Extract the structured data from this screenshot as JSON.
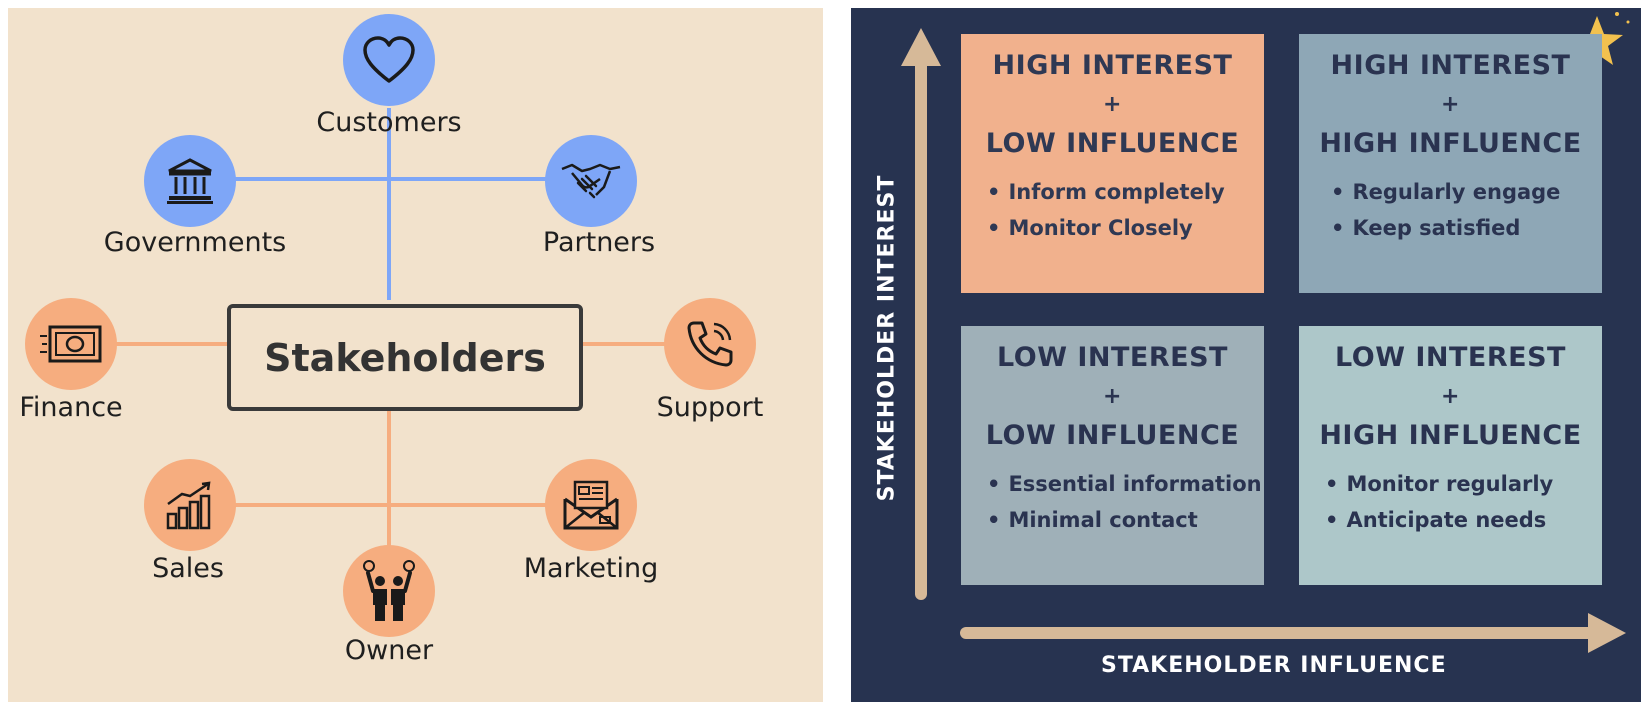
{
  "stakeholder_map": {
    "center": "Stakeholders",
    "nodes": [
      {
        "id": "customers",
        "label": "Customers",
        "icon": "heart-icon",
        "color": "#7ea6f7"
      },
      {
        "id": "governments",
        "label": "Governments",
        "icon": "bank-icon",
        "color": "#7ea6f7"
      },
      {
        "id": "partners",
        "label": "Partners",
        "icon": "handshake-icon",
        "color": "#7ea6f7"
      },
      {
        "id": "finance",
        "label": "Finance",
        "icon": "banknote-icon",
        "color": "#f6ad7f"
      },
      {
        "id": "support",
        "label": "Support",
        "icon": "phone-icon",
        "color": "#f6ad7f"
      },
      {
        "id": "sales",
        "label": "Sales",
        "icon": "bar-chart-icon",
        "color": "#f6ad7f"
      },
      {
        "id": "marketing",
        "label": "Marketing",
        "icon": "envelope-icon",
        "color": "#f6ad7f"
      },
      {
        "id": "owner",
        "label": "Owner",
        "icon": "people-icon",
        "color": "#f6ad7f"
      }
    ]
  },
  "matrix": {
    "y_axis_label": "STAKEHOLDER INTEREST",
    "x_axis_label": "STAKEHOLDER INFLUENCE",
    "quadrants": [
      {
        "line1": "HIGH INTEREST",
        "plus": "+",
        "line2": "LOW INFLUENCE",
        "bullets": [
          "Inform completely",
          "Monitor Closely"
        ],
        "color": "#f1b18d"
      },
      {
        "line1": "HIGH INTEREST",
        "plus": "+",
        "line2": "HIGH INFLUENCE",
        "bullets": [
          "Regularly engage",
          "Keep satisfied"
        ],
        "color": "#8ea7b6"
      },
      {
        "line1": "LOW INTEREST",
        "plus": "+",
        "line2": "LOW INFLUENCE",
        "bullets": [
          "Essential information",
          "Minimal contact"
        ],
        "color": "#9fb0b8"
      },
      {
        "line1": "LOW INTEREST",
        "plus": "+",
        "line2": "HIGH INFLUENCE",
        "bullets": [
          "Monitor regularly",
          "Anticipate needs"
        ],
        "color": "#adc7c9"
      }
    ],
    "decoration": "star-icon"
  }
}
